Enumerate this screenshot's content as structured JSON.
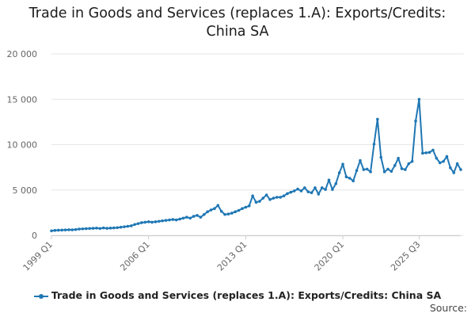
{
  "title_lines": [
    "Trade in Goods and Services (replaces 1.A): Exports/Credits:",
    "China SA"
  ],
  "legend_label": "Trade in Goods and Services (replaces 1.A): Exports/Credits: China SA",
  "source_label": "Source:",
  "colors": {
    "series": "#1f77b4",
    "grid": "#e6e6e6",
    "axis_text": "#666666"
  },
  "chart_data": {
    "type": "line",
    "title": "Trade in Goods and Services (replaces 1.A): Exports/Credits: China SA",
    "xlabel": "",
    "ylabel": "",
    "ylim": [
      0,
      20000
    ],
    "yticks": [
      0,
      5000,
      10000,
      15000,
      20000
    ],
    "ytick_labels": [
      "0",
      "5 000",
      "10 000",
      "15 000",
      "20 000"
    ],
    "xtick_labels": [
      "1999 Q1",
      "2006 Q1",
      "2013 Q1",
      "2020 Q1",
      "2025 Q3"
    ],
    "xtick_indices": [
      0,
      28,
      56,
      84,
      106
    ],
    "grid": true,
    "legend_position": "bottom",
    "series": [
      {
        "name": "Trade in Goods and Services (replaces 1.A): Exports/Credits: China SA",
        "values": [
          500,
          550,
          570,
          580,
          600,
          620,
          610,
          640,
          700,
          720,
          740,
          760,
          780,
          800,
          760,
          820,
          780,
          800,
          820,
          850,
          900,
          950,
          1000,
          1050,
          1200,
          1300,
          1400,
          1450,
          1500,
          1450,
          1500,
          1550,
          1600,
          1650,
          1700,
          1750,
          1700,
          1800,
          1900,
          2000,
          1900,
          2100,
          2200,
          2000,
          2300,
          2600,
          2800,
          2950,
          3300,
          2650,
          2300,
          2350,
          2450,
          2600,
          2750,
          2950,
          3100,
          3250,
          4350,
          3650,
          3750,
          4100,
          4450,
          3950,
          4100,
          4200,
          4200,
          4350,
          4600,
          4750,
          4900,
          5100,
          4900,
          5250,
          4800,
          4700,
          5250,
          4550,
          5250,
          5050,
          6100,
          5050,
          5700,
          6900,
          7850,
          6450,
          6300,
          6000,
          7150,
          8250,
          7250,
          7300,
          7000,
          10050,
          12800,
          8600,
          7000,
          7300,
          7050,
          7700,
          8500,
          7350,
          7250,
          7900,
          8150,
          12600,
          15000,
          9050,
          9100,
          9150,
          9400,
          8500,
          8000,
          8150,
          8700,
          7450,
          6900,
          7900,
          7250
        ]
      }
    ]
  }
}
